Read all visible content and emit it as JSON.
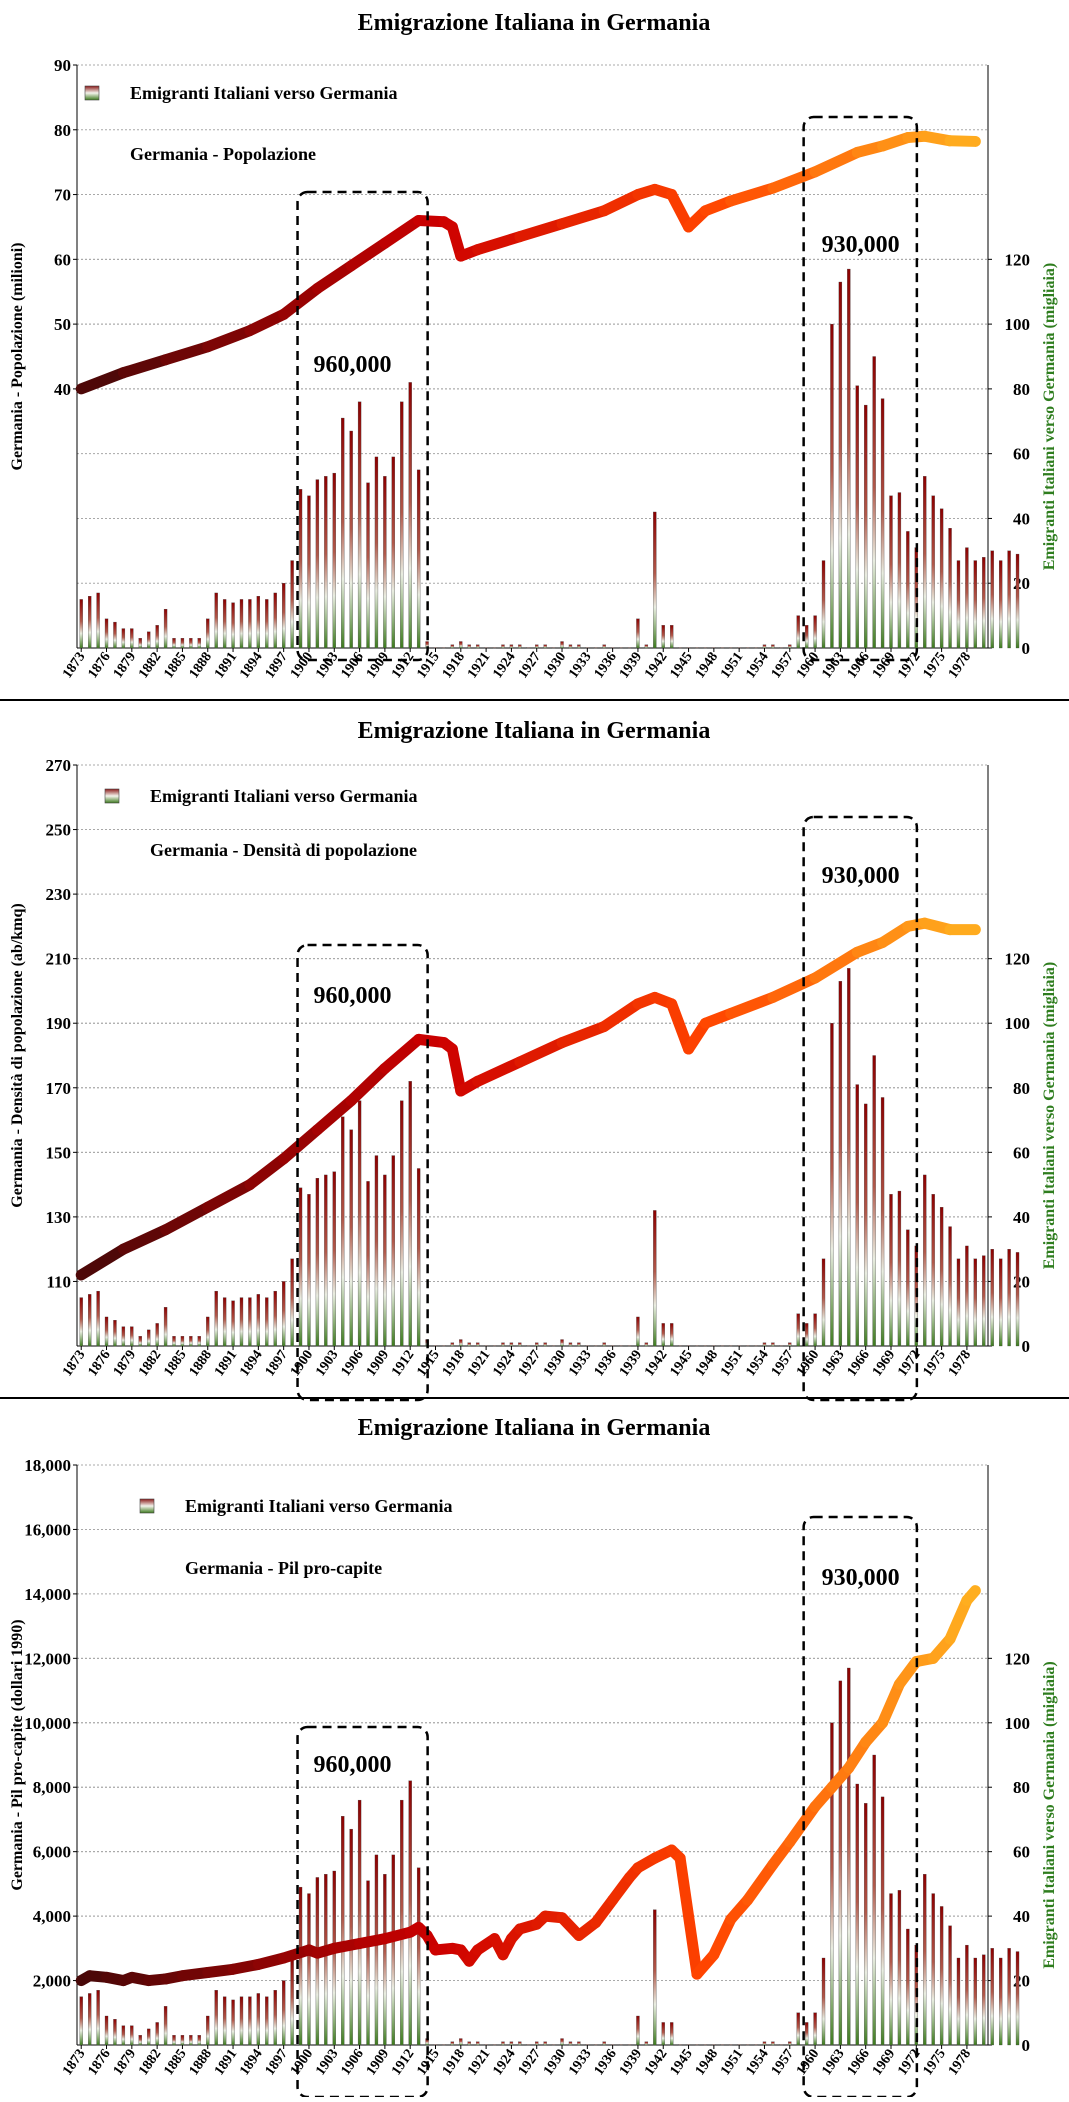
{
  "chart_data": [
    {
      "type": "bar+line",
      "title": "Emigrazione Italiana in Germania",
      "ylabel_left": "Germania - Popolazione (milioni)",
      "ylabel_right": "Emigranti Italiani verso Germania (migliaia)",
      "legend": [
        "Emigranti Italiani verso Germania",
        "Germania - Popolazione"
      ],
      "legend_position": "top-left",
      "left_axis": {
        "min": 0,
        "max": 90,
        "ticks": [
          40,
          50,
          60,
          70,
          80,
          90
        ]
      },
      "right_axis": {
        "min": 0,
        "max": 180,
        "ticks": [
          0,
          20,
          40,
          60,
          80,
          100,
          120
        ]
      },
      "annotations": [
        {
          "text": "960,000",
          "x_from": 1899,
          "x_to": 1913
        },
        {
          "text": "930,000",
          "x_from": 1959,
          "x_to": 1971
        }
      ],
      "x_ticks": [
        "1873",
        "1876",
        "1879",
        "1882",
        "1885",
        "1888",
        "1891",
        "1894",
        "1897",
        "1900",
        "1903",
        "1906",
        "1909",
        "1912",
        "1915",
        "1918",
        "1921",
        "1924",
        "1927",
        "1930",
        "1933",
        "1936",
        "1939",
        "1942",
        "1945",
        "1948",
        "1951",
        "1954",
        "1957",
        "1960",
        "1963",
        "1966",
        "1969",
        "1972",
        "1975",
        "1978"
      ],
      "line_series": {
        "name": "Germania - Popolazione",
        "points": [
          [
            1873,
            40.0
          ],
          [
            1878,
            42.5
          ],
          [
            1883,
            44.5
          ],
          [
            1888,
            46.5
          ],
          [
            1893,
            49.0
          ],
          [
            1897,
            51.5
          ],
          [
            1901,
            55.5
          ],
          [
            1905,
            59.0
          ],
          [
            1909,
            62.5
          ],
          [
            1913,
            66.0
          ],
          [
            1916,
            65.8
          ],
          [
            1917,
            65.0
          ],
          [
            1918,
            60.5
          ],
          [
            1920,
            61.5
          ],
          [
            1925,
            63.5
          ],
          [
            1930,
            65.5
          ],
          [
            1935,
            67.5
          ],
          [
            1939,
            70.0
          ],
          [
            1941,
            70.8
          ],
          [
            1943,
            70.0
          ],
          [
            1945,
            65.0
          ],
          [
            1947,
            67.5
          ],
          [
            1950,
            69.0
          ],
          [
            1955,
            71.0
          ],
          [
            1960,
            73.5
          ],
          [
            1965,
            76.5
          ],
          [
            1968,
            77.5
          ],
          [
            1971,
            78.8
          ],
          [
            1973,
            79.0
          ],
          [
            1976,
            78.3
          ],
          [
            1979,
            78.2
          ]
        ]
      },
      "bar_series": {
        "name": "Emigranti Italiani verso Germania",
        "values": [
          15,
          16,
          17,
          9,
          8,
          6,
          6,
          3,
          5,
          7,
          12,
          3,
          3,
          3,
          3,
          9,
          17,
          15,
          14,
          15,
          15,
          16,
          15,
          17,
          20,
          27,
          49,
          47,
          52,
          53,
          54,
          71,
          67,
          76,
          51,
          59,
          53,
          59,
          76,
          82,
          55,
          2,
          0,
          0,
          1,
          2,
          1,
          1,
          0,
          0,
          1,
          1,
          1,
          0,
          1,
          1,
          0,
          2,
          1,
          1,
          0,
          0,
          1,
          0,
          0,
          0,
          9,
          1,
          42,
          7,
          7,
          0,
          0,
          0,
          0,
          0,
          0,
          0,
          0,
          0,
          0,
          1,
          1,
          0,
          1,
          10,
          7,
          10,
          27,
          100,
          113,
          117,
          81,
          75,
          90,
          77,
          47,
          48,
          36,
          31,
          53,
          47,
          43,
          37,
          27,
          31,
          27,
          28,
          30,
          27,
          30,
          29
        ]
      }
    },
    {
      "type": "bar+line",
      "title": "Emigrazione Italiana in Germania",
      "ylabel_left": "Germania - Densità di popolazione (ab/kmq)",
      "ylabel_right": "Emigranti Italiani verso Germania (migliaia)",
      "legend": [
        "Emigranti Italiani verso Germania",
        "Germania - Densità di popolazione"
      ],
      "legend_position": "top-left",
      "left_axis": {
        "min": 90,
        "max": 270,
        "ticks": [
          110,
          130,
          150,
          170,
          190,
          210,
          230,
          250,
          270
        ]
      },
      "right_axis": {
        "min": 0,
        "max": 180,
        "ticks": [
          0,
          20,
          40,
          60,
          80,
          100,
          120
        ]
      },
      "annotations": [
        {
          "text": "960,000",
          "x_from": 1899,
          "x_to": 1913
        },
        {
          "text": "930,000",
          "x_from": 1959,
          "x_to": 1971
        }
      ],
      "x_ticks": [
        "1873",
        "1876",
        "1879",
        "1882",
        "1885",
        "1888",
        "1891",
        "1894",
        "1897",
        "1900",
        "1903",
        "1906",
        "1909",
        "1912",
        "1915",
        "1918",
        "1921",
        "1924",
        "1927",
        "1930",
        "1933",
        "1936",
        "1939",
        "1942",
        "1945",
        "1948",
        "1951",
        "1954",
        "1957",
        "1960",
        "1963",
        "1966",
        "1969",
        "1972",
        "1975",
        "1978"
      ],
      "line_series": {
        "name": "Germania - Densità di popolazione",
        "points": [
          [
            1873,
            112
          ],
          [
            1878,
            120
          ],
          [
            1883,
            126
          ],
          [
            1888,
            133
          ],
          [
            1893,
            140
          ],
          [
            1897,
            148
          ],
          [
            1901,
            157
          ],
          [
            1905,
            166
          ],
          [
            1909,
            176
          ],
          [
            1913,
            185
          ],
          [
            1916,
            184
          ],
          [
            1917,
            182
          ],
          [
            1918,
            169
          ],
          [
            1920,
            172
          ],
          [
            1925,
            178
          ],
          [
            1930,
            184
          ],
          [
            1935,
            189
          ],
          [
            1939,
            196
          ],
          [
            1941,
            198
          ],
          [
            1943,
            196
          ],
          [
            1945,
            182
          ],
          [
            1947,
            190
          ],
          [
            1950,
            193
          ],
          [
            1955,
            198
          ],
          [
            1960,
            204
          ],
          [
            1965,
            212
          ],
          [
            1968,
            215
          ],
          [
            1971,
            220
          ],
          [
            1973,
            221
          ],
          [
            1976,
            219
          ],
          [
            1979,
            219
          ]
        ]
      },
      "bar_series": {
        "name": "Emigranti Italiani verso Germania",
        "values": [
          15,
          16,
          17,
          9,
          8,
          6,
          6,
          3,
          5,
          7,
          12,
          3,
          3,
          3,
          3,
          9,
          17,
          15,
          14,
          15,
          15,
          16,
          15,
          17,
          20,
          27,
          49,
          47,
          52,
          53,
          54,
          71,
          67,
          76,
          51,
          59,
          53,
          59,
          76,
          82,
          55,
          2,
          0,
          0,
          1,
          2,
          1,
          1,
          0,
          0,
          1,
          1,
          1,
          0,
          1,
          1,
          0,
          2,
          1,
          1,
          0,
          0,
          1,
          0,
          0,
          0,
          9,
          1,
          42,
          7,
          7,
          0,
          0,
          0,
          0,
          0,
          0,
          0,
          0,
          0,
          0,
          1,
          1,
          0,
          1,
          10,
          7,
          10,
          27,
          100,
          113,
          117,
          81,
          75,
          90,
          77,
          47,
          48,
          36,
          31,
          53,
          47,
          43,
          37,
          27,
          31,
          27,
          28,
          30,
          27,
          30,
          29
        ]
      }
    },
    {
      "type": "bar+line",
      "title": "Emigrazione Italiana in Germania",
      "ylabel_left": "Germania - Pil pro-capite (dollari 1990)",
      "ylabel_right": "Emigranti Italiani verso Germania (migliaia)",
      "legend": [
        "Emigranti Italiani verso Germania",
        "Germania - Pil pro-capite"
      ],
      "legend_position": "top-left",
      "left_axis": {
        "min": 0,
        "max": 18000,
        "ticks": [
          2000,
          4000,
          6000,
          8000,
          10000,
          12000,
          14000,
          16000,
          18000
        ]
      },
      "right_axis": {
        "min": 0,
        "max": 180,
        "ticks": [
          0,
          20,
          40,
          60,
          80,
          100,
          120
        ]
      },
      "annotations": [
        {
          "text": "960,000",
          "x_from": 1899,
          "x_to": 1913
        },
        {
          "text": "930,000",
          "x_from": 1959,
          "x_to": 1971
        }
      ],
      "x_ticks": [
        "1873",
        "1876",
        "1879",
        "1882",
        "1885",
        "1888",
        "1891",
        "1894",
        "1897",
        "1900",
        "1903",
        "1906",
        "1909",
        "1912",
        "1915",
        "1918",
        "1921",
        "1924",
        "1927",
        "1930",
        "1933",
        "1936",
        "1939",
        "1942",
        "1945",
        "1948",
        "1951",
        "1954",
        "1957",
        "1960",
        "1963",
        "1966",
        "1969",
        "1972",
        "1975",
        "1978"
      ],
      "line_series": {
        "name": "Germania - Pil pro-capite",
        "points": [
          [
            1873,
            2000
          ],
          [
            1874,
            2150
          ],
          [
            1876,
            2100
          ],
          [
            1878,
            2000
          ],
          [
            1879,
            2100
          ],
          [
            1881,
            2000
          ],
          [
            1883,
            2050
          ],
          [
            1885,
            2150
          ],
          [
            1888,
            2250
          ],
          [
            1891,
            2350
          ],
          [
            1894,
            2500
          ],
          [
            1897,
            2700
          ],
          [
            1900,
            2950
          ],
          [
            1901,
            2850
          ],
          [
            1903,
            3000
          ],
          [
            1906,
            3150
          ],
          [
            1909,
            3300
          ],
          [
            1912,
            3500
          ],
          [
            1913,
            3650
          ],
          [
            1914,
            3400
          ],
          [
            1915,
            2950
          ],
          [
            1917,
            3000
          ],
          [
            1918,
            2950
          ],
          [
            1919,
            2600
          ],
          [
            1920,
            2950
          ],
          [
            1922,
            3300
          ],
          [
            1923,
            2800
          ],
          [
            1924,
            3300
          ],
          [
            1925,
            3600
          ],
          [
            1927,
            3750
          ],
          [
            1928,
            4000
          ],
          [
            1930,
            3950
          ],
          [
            1932,
            3400
          ],
          [
            1934,
            3800
          ],
          [
            1936,
            4500
          ],
          [
            1938,
            5200
          ],
          [
            1939,
            5500
          ],
          [
            1941,
            5800
          ],
          [
            1943,
            6050
          ],
          [
            1944,
            5800
          ],
          [
            1946,
            2200
          ],
          [
            1948,
            2800
          ],
          [
            1950,
            3900
          ],
          [
            1952,
            4500
          ],
          [
            1955,
            5600
          ],
          [
            1957,
            6300
          ],
          [
            1960,
            7400
          ],
          [
            1962,
            8000
          ],
          [
            1964,
            8600
          ],
          [
            1966,
            9400
          ],
          [
            1968,
            10000
          ],
          [
            1970,
            11200
          ],
          [
            1972,
            11900
          ],
          [
            1974,
            12000
          ],
          [
            1976,
            12600
          ],
          [
            1978,
            13800
          ],
          [
            1979,
            14100
          ]
        ]
      },
      "bar_series": {
        "name": "Emigranti Italiani verso Germania",
        "values": [
          15,
          16,
          17,
          9,
          8,
          6,
          6,
          3,
          5,
          7,
          12,
          3,
          3,
          3,
          3,
          9,
          17,
          15,
          14,
          15,
          15,
          16,
          15,
          17,
          20,
          27,
          49,
          47,
          52,
          53,
          54,
          71,
          67,
          76,
          51,
          59,
          53,
          59,
          76,
          82,
          55,
          2,
          0,
          0,
          1,
          2,
          1,
          1,
          0,
          0,
          1,
          1,
          1,
          0,
          1,
          1,
          0,
          2,
          1,
          1,
          0,
          0,
          1,
          0,
          0,
          0,
          9,
          1,
          42,
          7,
          7,
          0,
          0,
          0,
          0,
          0,
          0,
          0,
          0,
          0,
          0,
          1,
          1,
          0,
          1,
          10,
          7,
          10,
          27,
          100,
          113,
          117,
          81,
          75,
          90,
          77,
          47,
          48,
          36,
          31,
          53,
          47,
          43,
          37,
          27,
          31,
          27,
          28,
          30,
          27,
          30,
          29
        ]
      }
    }
  ]
}
